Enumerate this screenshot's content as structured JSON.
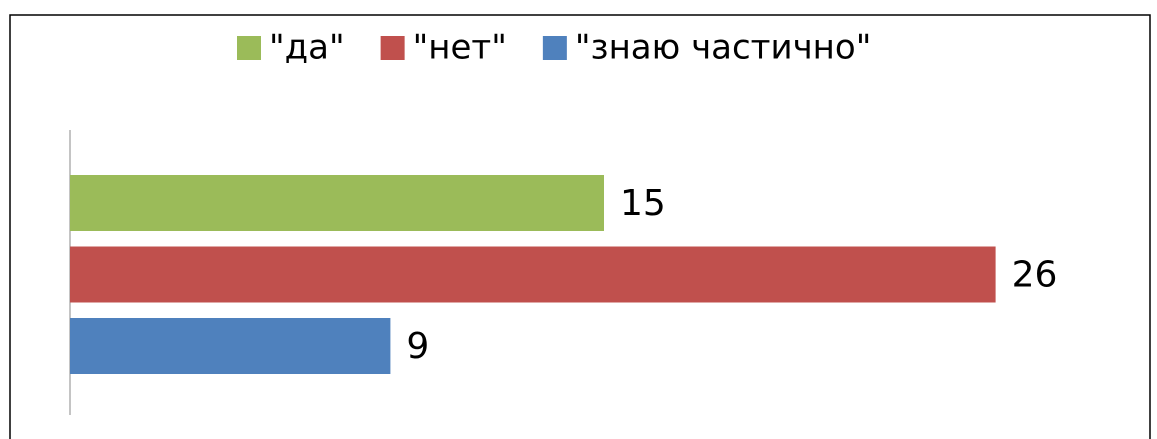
{
  "chart_data": {
    "type": "bar",
    "orientation": "horizontal",
    "series": [
      {
        "name": "\"да\"",
        "color": "#9bbb59",
        "values": [
          15
        ]
      },
      {
        "name": "\"нет\"",
        "color": "#c0504d",
        "values": [
          26
        ]
      },
      {
        "name": "\"знаю частично\"",
        "color": "#4f81bd",
        "values": [
          9
        ]
      }
    ],
    "xlim": [
      0,
      30
    ],
    "legend": "top",
    "data_labels": true
  }
}
